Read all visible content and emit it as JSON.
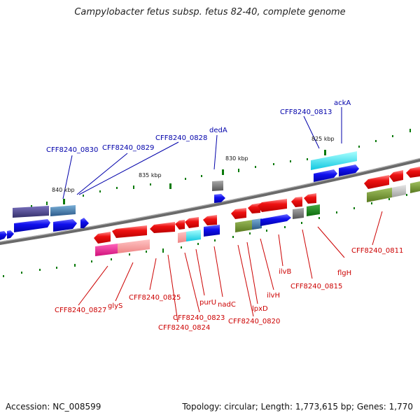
{
  "title": "Campylobacter fetus subsp. fetus 82-40, complete genome",
  "footer": {
    "accession": "Accession: NC_008599",
    "summary": "Topology: circular; Length: 1,773,615 bp; Genes: 1,770"
  },
  "ticks": [
    "840 kbp",
    "835 kbp",
    "830 kbp",
    "825 kbp"
  ],
  "labels_top": [
    "CFF8240_0830",
    "CFF8240_0829",
    "CFF8240_0828",
    "dedA",
    "CFF8240_0813",
    "ackA"
  ],
  "labels_bottom": [
    "CFF8240_0811",
    "flgH",
    "CFF8240_0815",
    "ilvB",
    "ilvH",
    "lpxD",
    "CFF8240_0820",
    "nadC",
    "purU",
    "CFF8240_0823",
    "CFF8240_0824",
    "CFF8240_0825",
    "glyS",
    "CFF8240_0827"
  ],
  "colors": {
    "forward_gene": "#0000ee",
    "reverse_gene": "#ee0000",
    "top_label": "#0000aa",
    "bottom_label": "#cc0000",
    "backbone": "#777777",
    "tick": "#0a7a0a"
  }
}
